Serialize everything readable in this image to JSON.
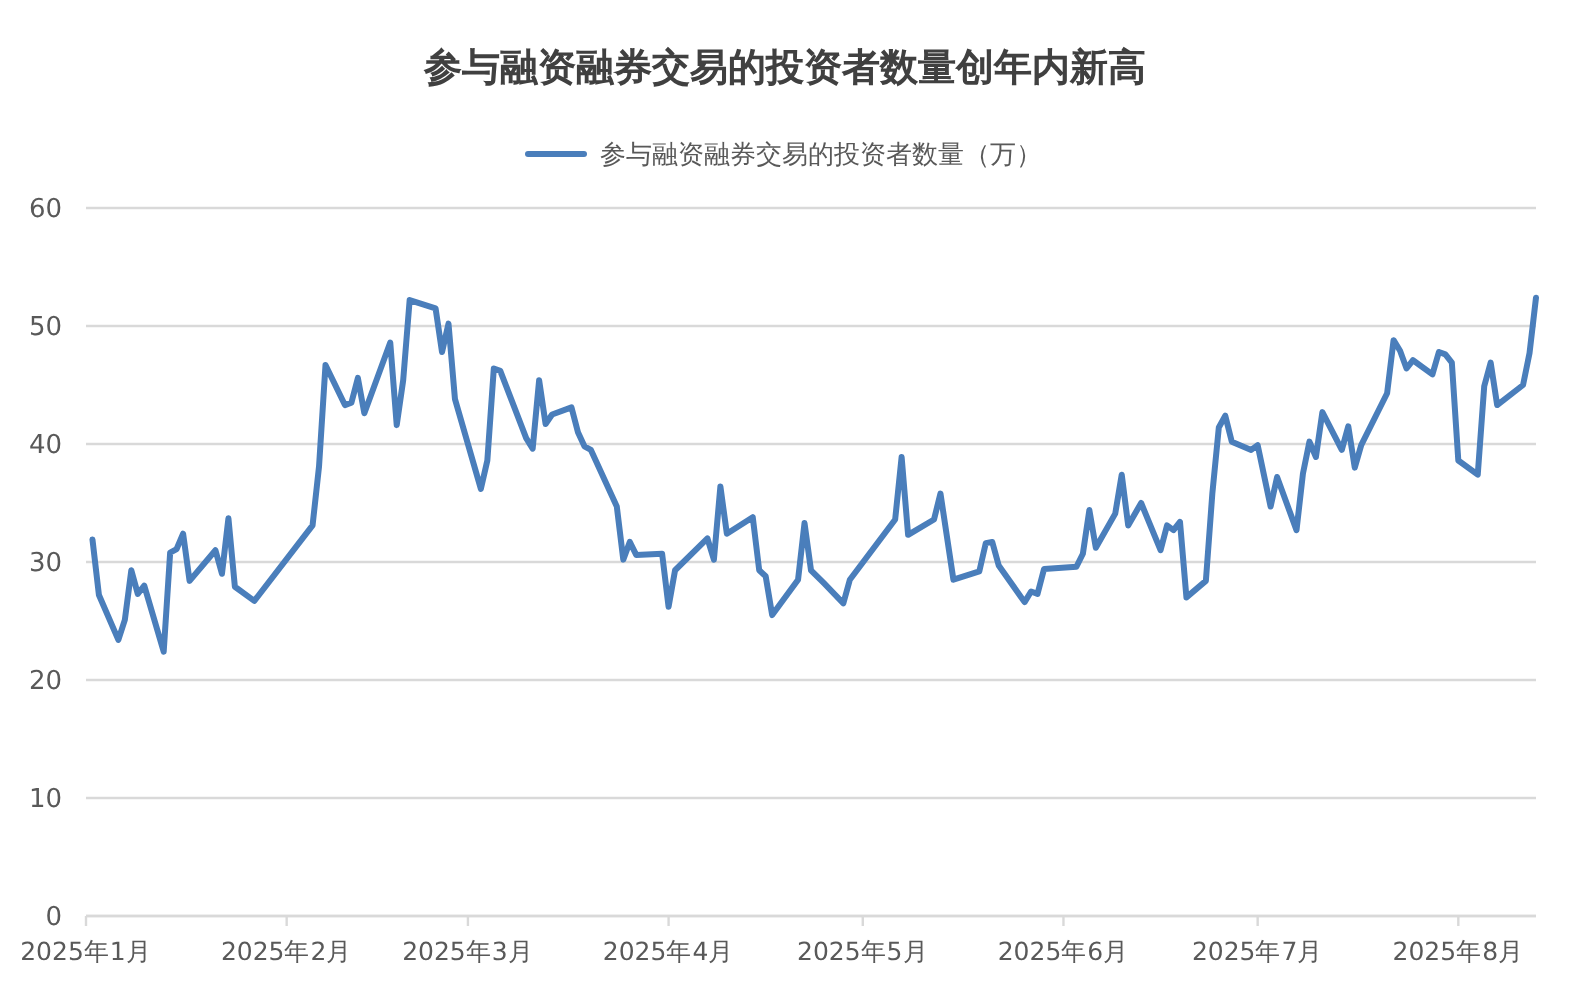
{
  "chart_data": {
    "type": "line",
    "title": "参与融资融券交易的投资者数量创年内新高",
    "legend": "top",
    "grid": "y",
    "xlim": [
      "2025-01-01",
      "2025-08-13"
    ],
    "xticks": [
      {
        "value": "2025-01-01",
        "label": "2025年1月"
      },
      {
        "value": "2025-02-01",
        "label": "2025年2月"
      },
      {
        "value": "2025-03-01",
        "label": "2025年3月"
      },
      {
        "value": "2025-04-01",
        "label": "2025年4月"
      },
      {
        "value": "2025-05-01",
        "label": "2025年5月"
      },
      {
        "value": "2025-06-01",
        "label": "2025年6月"
      },
      {
        "value": "2025-07-01",
        "label": "2025年7月"
      },
      {
        "value": "2025-08-01",
        "label": "2025年8月"
      }
    ],
    "ylim": [
      0,
      60
    ],
    "yticks": [
      0,
      10,
      20,
      30,
      40,
      50,
      60
    ],
    "x": [
      "2025-01-02",
      "2025-01-03",
      "2025-01-06",
      "2025-01-07",
      "2025-01-08",
      "2025-01-09",
      "2025-01-10",
      "2025-01-13",
      "2025-01-14",
      "2025-01-15",
      "2025-01-16",
      "2025-01-17",
      "2025-01-21",
      "2025-01-22",
      "2025-01-23",
      "2025-01-24",
      "2025-01-27",
      "2025-02-05",
      "2025-02-06",
      "2025-02-07",
      "2025-02-10",
      "2025-02-11",
      "2025-02-12",
      "2025-02-13",
      "2025-02-17",
      "2025-02-18",
      "2025-02-19",
      "2025-02-20",
      "2025-02-24",
      "2025-02-25",
      "2025-02-26",
      "2025-02-27",
      "2025-03-03",
      "2025-03-04",
      "2025-03-05",
      "2025-03-06",
      "2025-03-10",
      "2025-03-11",
      "2025-03-12",
      "2025-03-13",
      "2025-03-14",
      "2025-03-17",
      "2025-03-18",
      "2025-03-19",
      "2025-03-20",
      "2025-03-24",
      "2025-03-25",
      "2025-03-26",
      "2025-03-27",
      "2025-03-31",
      "2025-04-01",
      "2025-04-02",
      "2025-04-07",
      "2025-04-08",
      "2025-04-09",
      "2025-04-10",
      "2025-04-14",
      "2025-04-15",
      "2025-04-16",
      "2025-04-17",
      "2025-04-21",
      "2025-04-22",
      "2025-04-23",
      "2025-04-25",
      "2025-04-28",
      "2025-04-29",
      "2025-05-06",
      "2025-05-07",
      "2025-05-08",
      "2025-05-12",
      "2025-05-13",
      "2025-05-15",
      "2025-05-19",
      "2025-05-20",
      "2025-05-21",
      "2025-05-22",
      "2025-05-26",
      "2025-05-27",
      "2025-05-28",
      "2025-05-29",
      "2025-06-03",
      "2025-06-04",
      "2025-06-05",
      "2025-06-06",
      "2025-06-09",
      "2025-06-10",
      "2025-06-11",
      "2025-06-13",
      "2025-06-16",
      "2025-06-17",
      "2025-06-18",
      "2025-06-19",
      "2025-06-20",
      "2025-06-23",
      "2025-06-24",
      "2025-06-25",
      "2025-06-26",
      "2025-06-27",
      "2025-06-30",
      "2025-07-01",
      "2025-07-03",
      "2025-07-04",
      "2025-07-07",
      "2025-07-08",
      "2025-07-09",
      "2025-07-10",
      "2025-07-11",
      "2025-07-14",
      "2025-07-15",
      "2025-07-16",
      "2025-07-17",
      "2025-07-21",
      "2025-07-22",
      "2025-07-23",
      "2025-07-24",
      "2025-07-25",
      "2025-07-28",
      "2025-07-29",
      "2025-07-30",
      "2025-07-31",
      "2025-08-01",
      "2025-08-04",
      "2025-08-05",
      "2025-08-06",
      "2025-08-07",
      "2025-08-11",
      "2025-08-12",
      "2025-08-13"
    ],
    "series": [
      {
        "name": "参与融资融券交易的投资者数量（万）",
        "color": "#4a7ebb",
        "values": [
          31.9,
          27.2,
          23.4,
          25.1,
          29.3,
          27.3,
          28.0,
          22.4,
          30.8,
          31.1,
          32.4,
          28.4,
          31.0,
          29.0,
          33.7,
          27.9,
          26.7,
          33.1,
          38.1,
          46.7,
          43.3,
          43.5,
          45.6,
          42.6,
          48.6,
          41.6,
          45.4,
          52.2,
          51.5,
          47.8,
          50.2,
          43.8,
          36.2,
          38.6,
          46.4,
          46.2,
          40.5,
          39.6,
          45.4,
          41.7,
          42.5,
          43.1,
          41.0,
          39.8,
          39.5,
          34.7,
          30.2,
          31.7,
          30.6,
          30.7,
          26.2,
          29.3,
          32.0,
          30.2,
          36.4,
          32.4,
          33.8,
          29.3,
          28.8,
          25.5,
          28.5,
          33.3,
          29.3,
          28.2,
          26.5,
          28.5,
          33.6,
          38.9,
          32.3,
          33.6,
          35.8,
          28.5,
          29.2,
          31.6,
          31.7,
          29.7,
          26.6,
          27.5,
          27.3,
          29.4,
          29.6,
          30.7,
          34.4,
          31.2,
          34.1,
          37.4,
          33.1,
          35.0,
          31.0,
          33.1,
          32.7,
          33.4,
          27.0,
          28.4,
          35.8,
          41.4,
          42.4,
          40.2,
          39.5,
          39.9,
          34.7,
          37.2,
          32.7,
          37.5,
          40.2,
          38.9,
          42.7,
          39.5,
          41.5,
          38.0,
          39.9,
          44.3,
          48.8,
          47.9,
          46.4,
          47.1,
          45.9,
          47.8,
          47.6,
          46.9,
          38.6,
          37.4,
          44.9,
          46.9,
          43.3,
          45.0,
          47.7,
          52.4
        ]
      }
    ]
  }
}
